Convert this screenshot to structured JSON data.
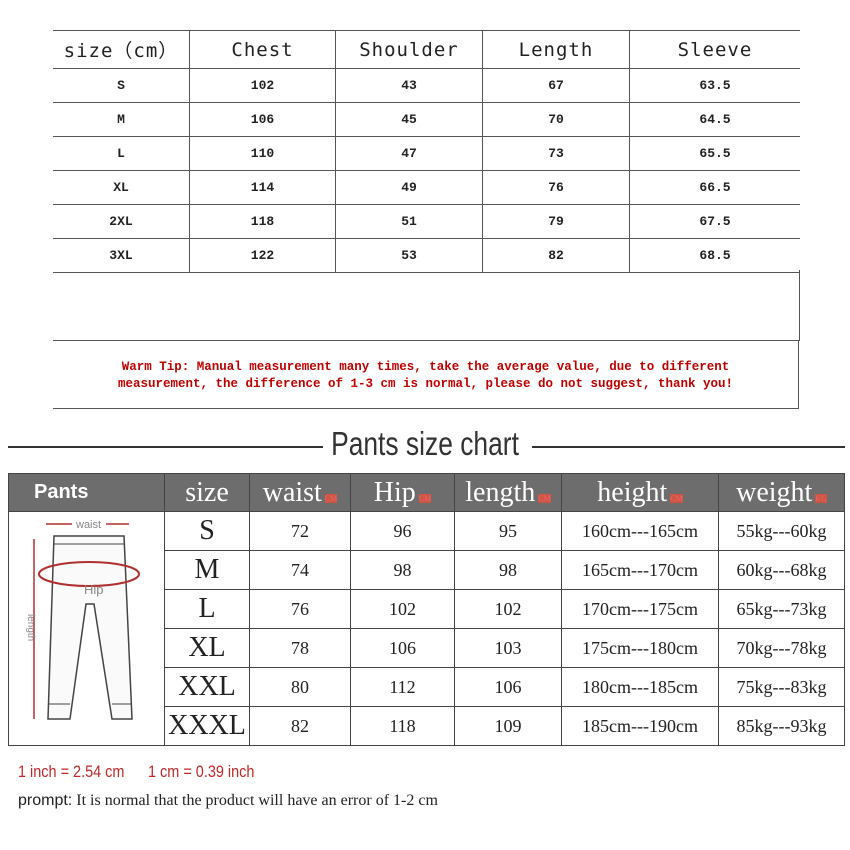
{
  "top_table": {
    "headers": [
      "size（cm）",
      "Chest",
      "Shoulder",
      "Length",
      "Sleeve"
    ],
    "rows": [
      [
        "S",
        "102",
        "43",
        "67",
        "63.5"
      ],
      [
        "M",
        "106",
        "45",
        "70",
        "64.5"
      ],
      [
        "L",
        "110",
        "47",
        "73",
        "65.5"
      ],
      [
        "XL",
        "114",
        "49",
        "76",
        "66.5"
      ],
      [
        "2XL",
        "118",
        "51",
        "79",
        "67.5"
      ],
      [
        "3XL",
        "122",
        "53",
        "82",
        "68.5"
      ]
    ],
    "warm_tip_line1": "Warm Tip: Manual measurement many times, take the average value, due to different",
    "warm_tip_line2": "measurement, the difference of 1-3 cm is normal, please do not suggest, thank you!"
  },
  "pants": {
    "title": "Pants size chart",
    "headers": [
      {
        "label": "Pants"
      },
      {
        "label": "size"
      },
      {
        "label": "waist",
        "unit": "CM"
      },
      {
        "label": "Hip",
        "unit": "CM"
      },
      {
        "label": "length",
        "unit": "CM"
      },
      {
        "label": "height",
        "unit": "CM"
      },
      {
        "label": "weight",
        "unit": "KG"
      }
    ],
    "diagram_labels": {
      "waist": "waist",
      "hip": "Hip",
      "length": "length"
    },
    "rows": [
      [
        "S",
        "72",
        "96",
        "95",
        "160cm---165cm",
        "55kg---60kg"
      ],
      [
        "M",
        "74",
        "98",
        "98",
        "165cm---170cm",
        "60kg---68kg"
      ],
      [
        "L",
        "76",
        "102",
        "102",
        "170cm---175cm",
        "65kg---73kg"
      ],
      [
        "XL",
        "78",
        "106",
        "103",
        "175cm---180cm",
        "70kg---78kg"
      ],
      [
        "XXL",
        "80",
        "112",
        "106",
        "180cm---185cm",
        "75kg---83kg"
      ],
      [
        "XXXL",
        "82",
        "118",
        "109",
        "185cm---190cm",
        "85kg---93kg"
      ]
    ]
  },
  "footer": {
    "conv1": "1 inch = 2.54 cm",
    "conv2": "1 cm = 0.39 inch",
    "prompt_label": "prompt:",
    "prompt_text": " It is normal that the product will have an error of 1-2 cm"
  },
  "colors": {
    "tip": "#c00000",
    "header_bg": "#6d6d6d",
    "conversion": "#c0282a"
  }
}
